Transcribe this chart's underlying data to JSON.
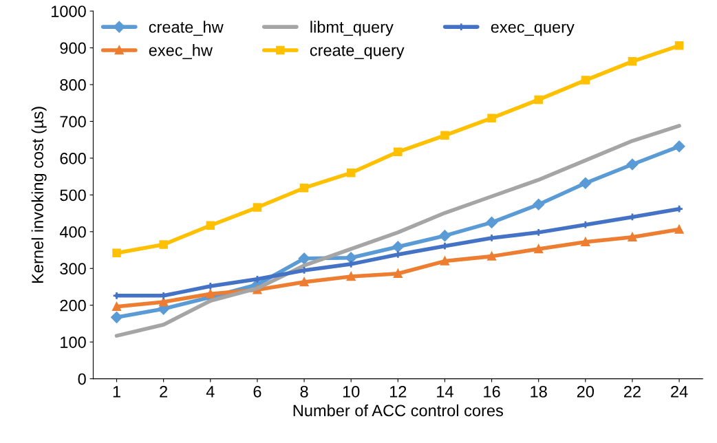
{
  "chart_data": {
    "type": "line",
    "xlabel": "Number of ACC control cores",
    "ylabel": "Kernel invoking cost (µs)",
    "categories": [
      "1",
      "2",
      "4",
      "6",
      "8",
      "10",
      "12",
      "14",
      "16",
      "18",
      "20",
      "22",
      "24"
    ],
    "ylim": [
      0,
      1000
    ],
    "yticks": [
      0,
      100,
      200,
      300,
      400,
      500,
      600,
      700,
      800,
      900,
      1000
    ],
    "grid": false,
    "legend": "top left",
    "series": [
      {
        "name": "create_hw",
        "color": "#5b9bd5",
        "marker": "diamond",
        "values": [
          167,
          190,
          222,
          256,
          327,
          329,
          359,
          389,
          425,
          474,
          532,
          583,
          632
        ]
      },
      {
        "name": "exec_hw",
        "color": "#ed7d31",
        "marker": "triangle",
        "values": [
          196,
          209,
          231,
          242,
          263,
          278,
          286,
          320,
          333,
          353,
          372,
          385,
          406
        ]
      },
      {
        "name": "libmt_query",
        "color": "#a5a5a5",
        "marker": "none",
        "values": [
          117,
          147,
          212,
          246,
          308,
          353,
          398,
          451,
          496,
          541,
          594,
          647,
          688
        ]
      },
      {
        "name": "create_query",
        "color": "#ffc000",
        "marker": "square",
        "values": [
          342,
          365,
          417,
          466,
          519,
          560,
          617,
          662,
          709,
          759,
          812,
          863,
          906
        ]
      },
      {
        "name": "exec_query",
        "color": "#4472c4",
        "marker": "cross",
        "values": [
          226,
          226,
          252,
          271,
          295,
          312,
          338,
          361,
          383,
          398,
          419,
          440,
          462
        ]
      }
    ]
  }
}
